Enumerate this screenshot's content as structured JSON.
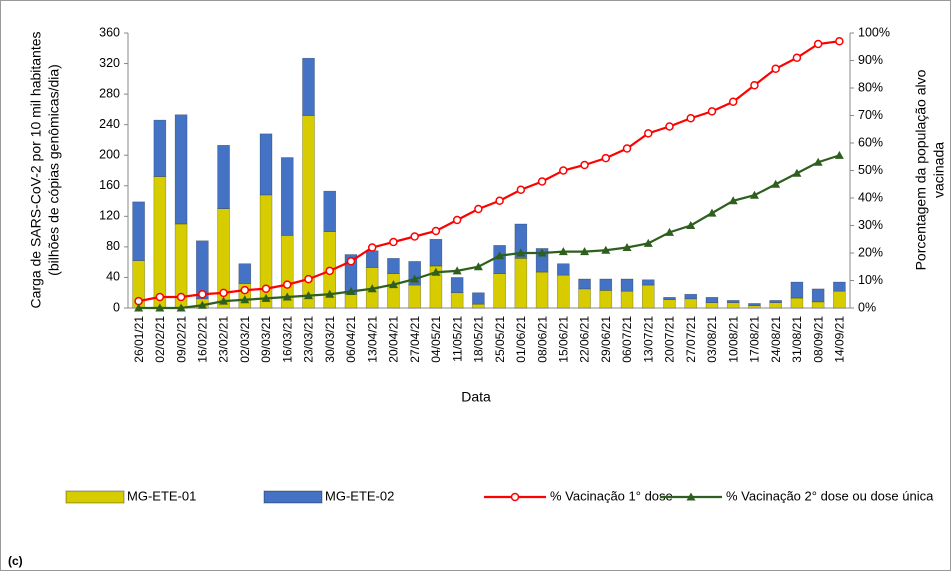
{
  "chart_data": {
    "type": "bar-line",
    "categories": [
      "26/01/21",
      "02/02/21",
      "09/02/21",
      "16/02/21",
      "23/02/21",
      "02/03/21",
      "09/03/21",
      "16/03/21",
      "23/03/21",
      "30/03/21",
      "06/04/21",
      "13/04/21",
      "20/04/21",
      "27/04/21",
      "04/05/21",
      "11/05/21",
      "18/05/21",
      "25/05/21",
      "01/06/21",
      "08/06/21",
      "15/06/21",
      "22/06/21",
      "29/06/21",
      "06/07/21",
      "13/07/21",
      "20/07/21",
      "27/07/21",
      "03/08/21",
      "10/08/21",
      "17/08/21",
      "24/08/21",
      "31/08/21",
      "08/09/21",
      "14/09/21"
    ],
    "series": [
      {
        "name": "MG-ETE-01",
        "kind": "bar",
        "color": "#d6cc00",
        "values": [
          62,
          172,
          110,
          12,
          130,
          32,
          148,
          95,
          252,
          100,
          18,
          53,
          45,
          30,
          55,
          20,
          5,
          45,
          65,
          47,
          43,
          25,
          23,
          22,
          30,
          11,
          12,
          7,
          7,
          3,
          7,
          13,
          8,
          22
        ]
      },
      {
        "name": "MG-ETE-02",
        "kind": "bar",
        "color": "#4472c4",
        "values": [
          77,
          74,
          143,
          76,
          83,
          26,
          80,
          102,
          75,
          53,
          52,
          22,
          20,
          31,
          35,
          20,
          15,
          37,
          45,
          31,
          15,
          13,
          15,
          16,
          7,
          3,
          6,
          7,
          3,
          3,
          3,
          21,
          17,
          12
        ]
      },
      {
        "name": "% Vacinação 1° dose",
        "kind": "line",
        "axis": "y2",
        "color": "#ff0000",
        "marker": "circle",
        "values": [
          2.5,
          4,
          4,
          5,
          5.5,
          6.5,
          7,
          8.5,
          10.5,
          13.5,
          17,
          22,
          24,
          26,
          28,
          32,
          36,
          39,
          43,
          46,
          50,
          52,
          54.5,
          58,
          63.5,
          66,
          69,
          71.5,
          75,
          81,
          87,
          91,
          96,
          97
        ]
      },
      {
        "name": "% Vacinação 2° dose ou dose única",
        "kind": "line",
        "axis": "y2",
        "color": "#2f5f1f",
        "marker": "triangle",
        "values": [
          0,
          0,
          0,
          1,
          2.5,
          3,
          3.5,
          4,
          4.5,
          5,
          6,
          7,
          8.5,
          10.5,
          13,
          13.5,
          15,
          19,
          20,
          20,
          20.5,
          20.5,
          21,
          22,
          23.5,
          27.5,
          30,
          34.5,
          39,
          41,
          45,
          49,
          53,
          55.5
        ]
      }
    ],
    "ylim": [
      0,
      360
    ],
    "yticks": [
      0,
      40,
      80,
      120,
      160,
      200,
      240,
      280,
      320,
      360
    ],
    "y2lim": [
      0,
      100
    ],
    "y2ticks": [
      {
        "value": 0,
        "label": "0%"
      },
      {
        "value": 10,
        "label": "10%"
      },
      {
        "value": 20,
        "label": "20%"
      },
      {
        "value": 30,
        "label": "30%"
      },
      {
        "value": 40,
        "label": "40%"
      },
      {
        "value": 50,
        "label": "50%"
      },
      {
        "value": 60,
        "label": "60%"
      },
      {
        "value": 70,
        "label": "70%"
      },
      {
        "value": 80,
        "label": "80%"
      },
      {
        "value": 90,
        "label": "90%"
      },
      {
        "value": 100,
        "label": "100%"
      }
    ],
    "xlabel": "Data",
    "ylabel": [
      "Carga de SARS-CoV-2 por 10 mil habitantes",
      "(bilhões de cópias genômicas/dia)"
    ],
    "y2label": [
      "Porcentagem da população alvo",
      "vacinada"
    ],
    "panel_label": "(c)",
    "grid": false,
    "legend": "bottom"
  }
}
